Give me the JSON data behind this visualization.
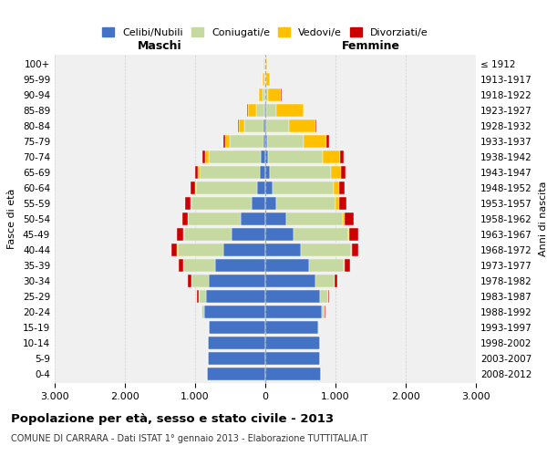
{
  "age_groups": [
    "0-4",
    "5-9",
    "10-14",
    "15-19",
    "20-24",
    "25-29",
    "30-34",
    "35-39",
    "40-44",
    "45-49",
    "50-54",
    "55-59",
    "60-64",
    "65-69",
    "70-74",
    "75-79",
    "80-84",
    "85-89",
    "90-94",
    "95-99",
    "100+"
  ],
  "birth_years": [
    "2008-2012",
    "2003-2007",
    "1998-2002",
    "1993-1997",
    "1988-1992",
    "1983-1987",
    "1978-1982",
    "1973-1977",
    "1968-1972",
    "1963-1967",
    "1958-1962",
    "1953-1957",
    "1948-1952",
    "1943-1947",
    "1938-1942",
    "1933-1937",
    "1928-1932",
    "1923-1927",
    "1918-1922",
    "1913-1917",
    "≤ 1912"
  ],
  "male": {
    "celibi": [
      830,
      820,
      820,
      800,
      870,
      850,
      800,
      720,
      600,
      480,
      350,
      200,
      120,
      80,
      60,
      30,
      20,
      10,
      5,
      5,
      5
    ],
    "coniugati": [
      0,
      0,
      0,
      10,
      40,
      100,
      250,
      450,
      650,
      680,
      750,
      850,
      870,
      850,
      750,
      480,
      280,
      120,
      30,
      10,
      5
    ],
    "vedovi": [
      0,
      0,
      0,
      0,
      0,
      0,
      0,
      0,
      5,
      5,
      5,
      10,
      15,
      30,
      50,
      60,
      80,
      120,
      60,
      20,
      10
    ],
    "divorziati": [
      0,
      0,
      0,
      0,
      5,
      20,
      50,
      70,
      80,
      90,
      80,
      80,
      60,
      40,
      40,
      30,
      10,
      5,
      0,
      0,
      0
    ]
  },
  "female": {
    "nubili": [
      790,
      780,
      780,
      750,
      800,
      780,
      720,
      620,
      500,
      400,
      300,
      150,
      100,
      60,
      40,
      20,
      15,
      10,
      5,
      5,
      5
    ],
    "coniugate": [
      0,
      0,
      0,
      10,
      50,
      120,
      270,
      500,
      720,
      780,
      800,
      850,
      870,
      870,
      780,
      530,
      320,
      150,
      40,
      10,
      5
    ],
    "vedove": [
      0,
      0,
      0,
      0,
      0,
      0,
      0,
      5,
      10,
      20,
      30,
      50,
      80,
      150,
      250,
      320,
      380,
      380,
      180,
      50,
      15
    ],
    "divorziate": [
      0,
      0,
      0,
      0,
      5,
      10,
      40,
      80,
      100,
      120,
      130,
      100,
      80,
      60,
      50,
      40,
      15,
      10,
      5,
      0,
      0
    ]
  },
  "colors": {
    "celibi": "#4472c4",
    "coniugati": "#c5d9a0",
    "vedovi": "#ffc000",
    "divorziati": "#cc0000"
  },
  "xlim": 3000,
  "title": "Popolazione per età, sesso e stato civile - 2013",
  "subtitle": "COMUNE DI CARRARA - Dati ISTAT 1° gennaio 2013 - Elaborazione TUTTITALIA.IT",
  "ylabel": "Fasce di età",
  "ylabel2": "Anni di nascita",
  "xlabel_maschi": "Maschi",
  "xlabel_femmine": "Femmine",
  "legend_labels": [
    "Celibi/Nubili",
    "Coniugati/e",
    "Vedovi/e",
    "Divorziati/e"
  ],
  "background_color": "#ffffff",
  "plot_bg_color": "#f0f0f0",
  "grid_color": "#cccccc",
  "tick_labels": [
    "3.000",
    "2.000",
    "1.000",
    "0",
    "1.000",
    "2.000",
    "3.000"
  ]
}
